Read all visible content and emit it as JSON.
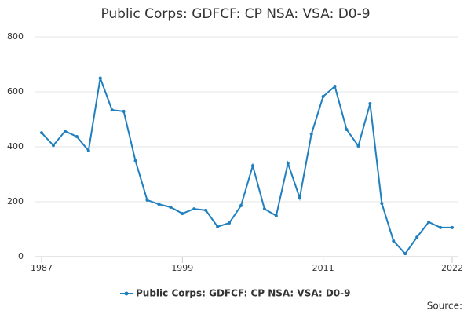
{
  "chart_data": {
    "type": "line",
    "title": "Public Corps: GDFCF: CP NSA: VSA: D0-9",
    "x": [
      1987,
      1988,
      1989,
      1990,
      1991,
      1992,
      1993,
      1994,
      1995,
      1996,
      1997,
      1998,
      1999,
      2000,
      2001,
      2002,
      2003,
      2004,
      2005,
      2006,
      2007,
      2008,
      2009,
      2010,
      2011,
      2012,
      2013,
      2014,
      2015,
      2016,
      2017,
      2018,
      2019,
      2020,
      2021,
      2022
    ],
    "series": [
      {
        "name": "Public Corps: GDFCF: CP NSA: VSA: D0-9",
        "color": "#1f7fbf",
        "values": [
          451,
          405,
          457,
          437,
          386,
          650,
          534,
          529,
          349,
          206,
          191,
          180,
          157,
          174,
          169,
          109,
          123,
          186,
          331,
          174,
          149,
          340,
          214,
          446,
          583,
          620,
          463,
          403,
          557,
          194,
          57,
          11,
          71,
          126,
          106,
          106
        ]
      }
    ],
    "xlim": [
      1987,
      2022
    ],
    "xticks": [
      1987,
      1999,
      2011,
      2022
    ],
    "ylim": [
      0,
      800
    ],
    "yticks": [
      0,
      200,
      400,
      600,
      800
    ],
    "grid": true,
    "source": "Source:"
  }
}
